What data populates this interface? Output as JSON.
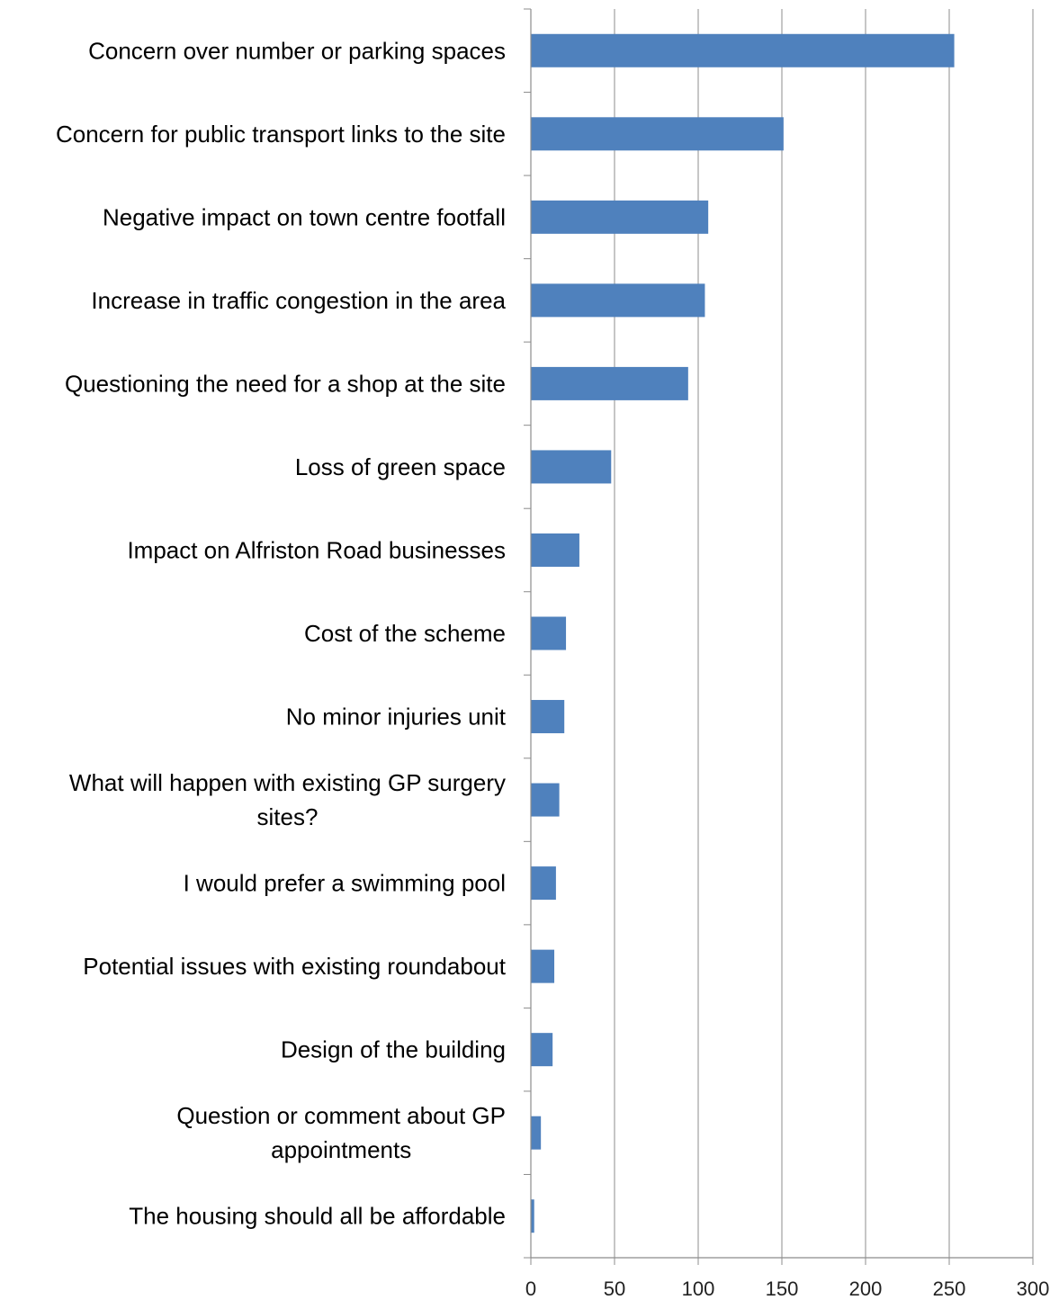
{
  "chart_data": {
    "type": "bar",
    "orientation": "horizontal",
    "title": "",
    "xlabel": "",
    "ylabel": "",
    "categories": [
      "Concern over number or parking spaces",
      "Concern for public transport links to the site",
      "Negative impact on town centre footfall",
      "Increase in traffic congestion in the area",
      "Questioning the need for a shop at the site",
      "Loss of green space",
      "Impact on Alfriston Road businesses",
      "Cost of the scheme",
      "No minor injuries unit",
      "What will happen with existing GP surgery sites?",
      "I would prefer a swimming pool",
      "Potential issues with existing roundabout",
      "Design of the building",
      "Question or comment about GP appointments",
      "The housing should all be affordable"
    ],
    "category_lines": [
      [
        "Concern over number or parking spaces"
      ],
      [
        "Concern for public transport links to the site"
      ],
      [
        "Negative impact on town centre footfall"
      ],
      [
        "Increase in traffic congestion in the area"
      ],
      [
        "Questioning the need for a shop at the site"
      ],
      [
        "Loss of green space"
      ],
      [
        "Impact on Alfriston Road businesses"
      ],
      [
        "Cost of the scheme"
      ],
      [
        "No minor injuries unit"
      ],
      [
        "What will happen with existing GP surgery",
        "sites?"
      ],
      [
        "I would prefer a swimming pool"
      ],
      [
        "Potential issues with existing roundabout"
      ],
      [
        "Design of the building"
      ],
      [
        "Question or comment about GP",
        "appointments"
      ],
      [
        "The housing should all be affordable"
      ]
    ],
    "values": [
      253,
      151,
      106,
      104,
      94,
      48,
      29,
      21,
      20,
      17,
      15,
      14,
      13,
      6,
      2
    ],
    "xlim": [
      0,
      300
    ],
    "xticks": [
      "0",
      "50",
      "100",
      "150",
      "200",
      "250",
      "300"
    ],
    "grid": true,
    "legend": "none",
    "bar_color": "#4F81BD",
    "grid_color": "#8C8C8C"
  }
}
